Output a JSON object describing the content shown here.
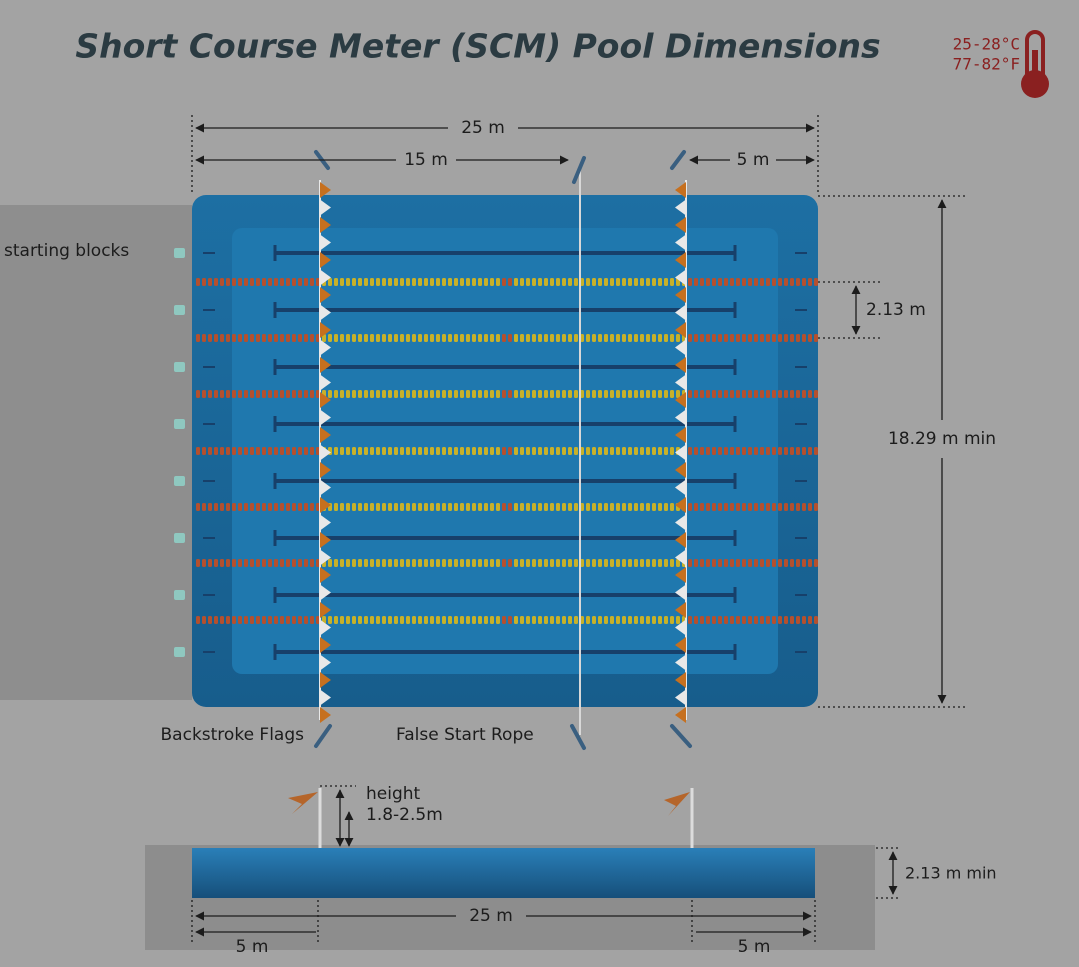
{
  "header": {
    "title": "Short Course Meter (SCM) Pool Dimensions"
  },
  "temperature": {
    "celsius": "25-28°C",
    "fahrenheit": "77-82°F"
  },
  "top_view": {
    "dimensions": {
      "length": "25 m",
      "backstroke_to_rope": "15 m",
      "end_section": "5 m",
      "lane_width": "2.13 m",
      "width": "18.29 m min"
    },
    "labels": {
      "starting_blocks": "starting blocks",
      "backstroke_flags": "Backstroke Flags",
      "false_start_rope": "False Start Rope"
    }
  },
  "side_view": {
    "height_label": "height",
    "height_range": "1.8-2.5m",
    "depth": "2.13 m min",
    "length": "25 m",
    "left_section": "5 m",
    "right_section": "5 m"
  }
}
